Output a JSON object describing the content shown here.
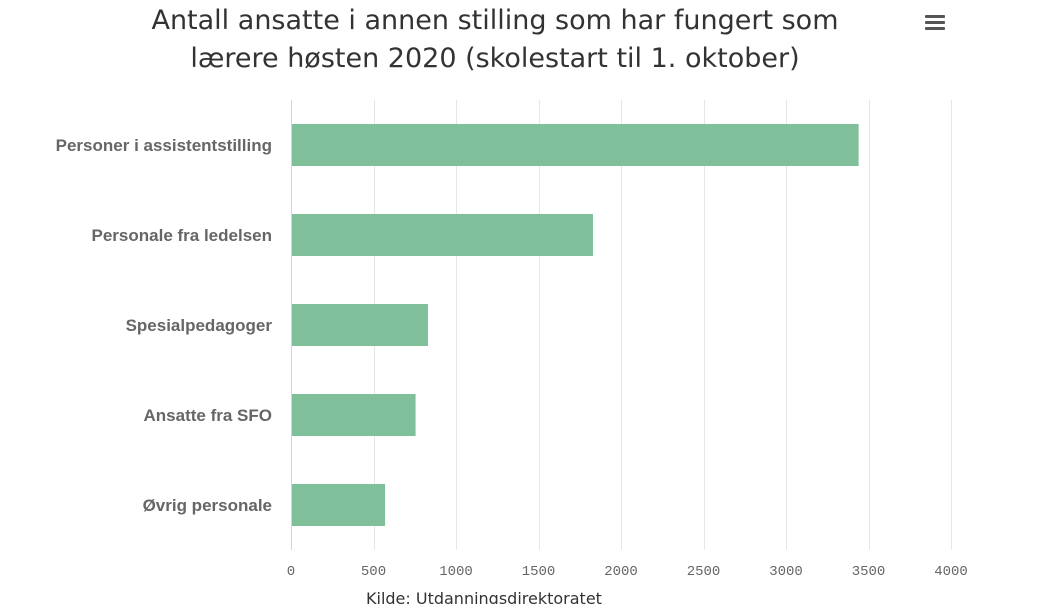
{
  "title_lines": [
    "Antall ansatte i annen stilling som har fungert som",
    "lærere høsten 2020 (skolestart til 1. oktober)"
  ],
  "menu": {
    "icon": "hamburger-menu-icon"
  },
  "source": "Kilde: Utdanningsdirektoratet",
  "colors": {
    "bar": "#7fbf99",
    "grid": "#e6e6e6",
    "axis_line": "#ccd6eb",
    "text": "#666666"
  },
  "chart_data": {
    "type": "bar",
    "orientation": "horizontal",
    "title": "Antall ansatte i annen stilling som har fungert som lærere høsten 2020 (skolestart til 1. oktober)",
    "categories": [
      "Personer i assistentstilling",
      "Personale fra ledelsen",
      "Spesialpedagoger",
      "Ansatte fra SFO",
      "Øvrig personale"
    ],
    "values": [
      3440,
      1830,
      830,
      755,
      570
    ],
    "xlim": [
      0,
      4000
    ],
    "xticks": [
      0,
      500,
      1000,
      1500,
      2000,
      2500,
      3000,
      3500,
      4000
    ],
    "grid": true,
    "legend": "none"
  }
}
